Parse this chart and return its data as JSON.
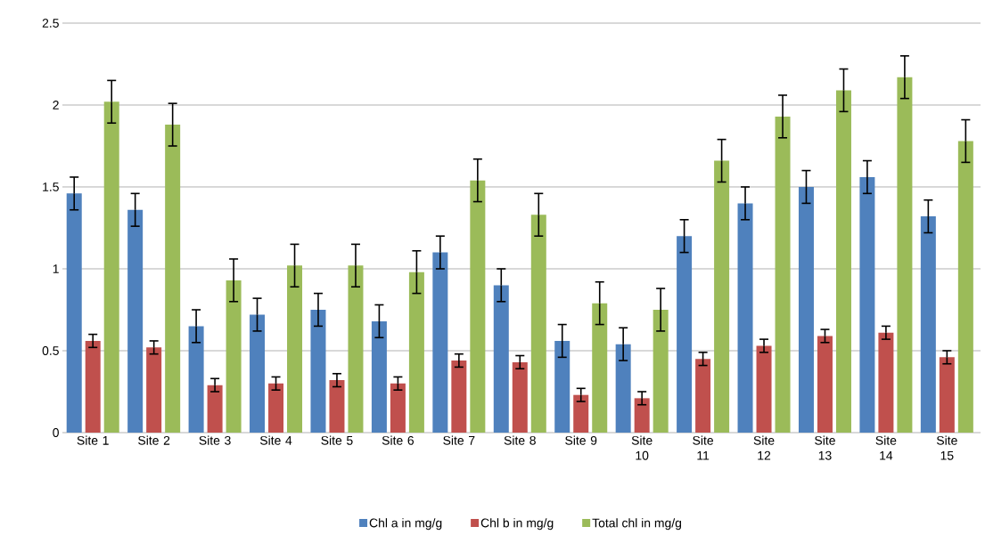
{
  "chart_data": {
    "type": "bar",
    "categories": [
      "Site 1",
      "Site 2",
      "Site 3",
      "Site 4",
      "Site 5",
      "Site 6",
      "Site 7",
      "Site 8",
      "Site 9",
      "Site 10",
      "Site 11",
      "Site 12",
      "Site 13",
      "Site 14",
      "Site 15"
    ],
    "series": [
      {
        "name": "Chl a in mg/g",
        "color": "#4f81bd",
        "values": [
          1.46,
          1.36,
          0.65,
          0.72,
          0.75,
          0.68,
          1.1,
          0.9,
          0.56,
          0.54,
          1.2,
          1.4,
          1.5,
          1.56,
          1.32
        ],
        "errors": [
          0.1,
          0.1,
          0.1,
          0.1,
          0.1,
          0.1,
          0.1,
          0.1,
          0.1,
          0.1,
          0.1,
          0.1,
          0.1,
          0.1,
          0.1
        ]
      },
      {
        "name": "Chl b in mg/g",
        "color": "#c0504d",
        "values": [
          0.56,
          0.52,
          0.29,
          0.3,
          0.32,
          0.3,
          0.44,
          0.43,
          0.23,
          0.21,
          0.45,
          0.53,
          0.59,
          0.61,
          0.46
        ],
        "errors": [
          0.04,
          0.04,
          0.04,
          0.04,
          0.04,
          0.04,
          0.04,
          0.04,
          0.04,
          0.04,
          0.04,
          0.04,
          0.04,
          0.04,
          0.04
        ]
      },
      {
        "name": "Total chl in mg/g",
        "color": "#9bbb59",
        "values": [
          2.02,
          1.88,
          0.93,
          1.02,
          1.02,
          0.98,
          1.54,
          1.33,
          0.79,
          0.75,
          1.66,
          1.93,
          2.09,
          2.17,
          1.78
        ],
        "errors": [
          0.13,
          0.13,
          0.13,
          0.13,
          0.13,
          0.13,
          0.13,
          0.13,
          0.13,
          0.13,
          0.13,
          0.13,
          0.13,
          0.13,
          0.13
        ]
      }
    ],
    "ylim": [
      0,
      2.5
    ],
    "yticks": [
      0,
      0.5,
      1,
      1.5,
      2,
      2.5
    ],
    "grid": "y",
    "legend": "bottom"
  }
}
